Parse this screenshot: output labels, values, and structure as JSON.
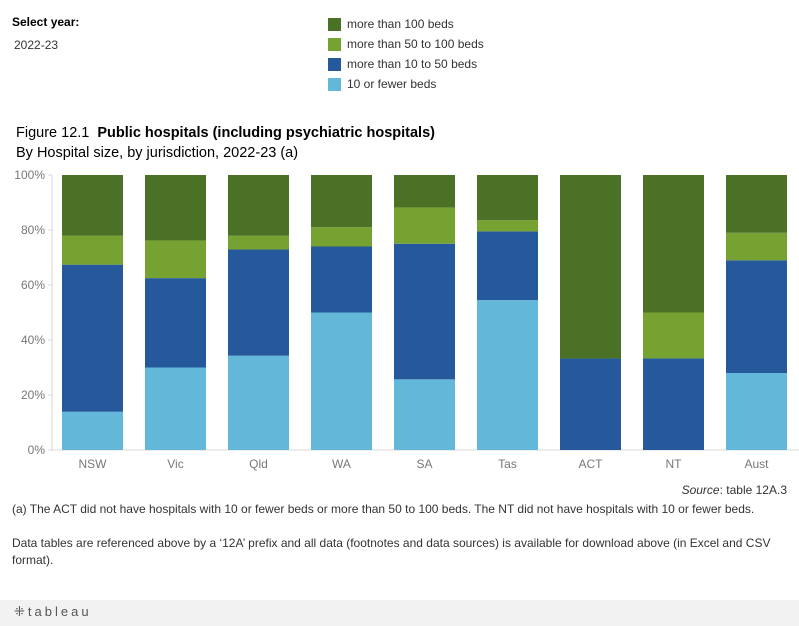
{
  "filter": {
    "label": "Select year:",
    "value": "2022-23"
  },
  "legend": [
    {
      "label": "more than 100 beds",
      "color": "#4a7125"
    },
    {
      "label": "more than 50 to 100 beds",
      "color": "#76a232"
    },
    {
      "label": "more than 10 to 50 beds",
      "color": "#26589c"
    },
    {
      "label": "10 or fewer beds",
      "color": "#63b8da"
    }
  ],
  "titles": {
    "figure": "Figure 12.1",
    "title": "Public hospitals (including psychiatric hospitals)",
    "subtitle": "By Hospital size, by jurisdiction, 2022-23 (a)"
  },
  "chart_data": {
    "type": "bar",
    "stacked": true,
    "categories": [
      "NSW",
      "Vic",
      "Qld",
      "WA",
      "SA",
      "Tas",
      "ACT",
      "NT",
      "Aust"
    ],
    "series": [
      {
        "name": "10 or fewer beds",
        "color": "#63b8da",
        "values": [
          13.9,
          30.0,
          34.3,
          50.0,
          25.7,
          54.5,
          0,
          0,
          28.0
        ]
      },
      {
        "name": "more than 10 to 50 beds",
        "color": "#26589c",
        "values": [
          53.5,
          32.5,
          38.6,
          24.0,
          49.3,
          25.0,
          33.3,
          33.3,
          41.0
        ]
      },
      {
        "name": "more than 50 to 100 beds",
        "color": "#76a232",
        "values": [
          10.5,
          13.7,
          5.0,
          7.0,
          13.2,
          4.1,
          0,
          16.7,
          10.0
        ]
      },
      {
        "name": "more than 100 beds",
        "color": "#4a7125",
        "values": [
          22.1,
          23.8,
          22.1,
          19.0,
          11.8,
          16.4,
          66.7,
          50.0,
          21.0
        ]
      }
    ],
    "y_ticks": [
      "0%",
      "20%",
      "40%",
      "60%",
      "80%",
      "100%"
    ],
    "ylim": [
      0,
      100
    ],
    "grid": false
  },
  "source": {
    "label": "Source",
    "text": ": table 12A.3"
  },
  "footnotes": [
    "(a) The ACT did not have hospitals with 10 or fewer beds or more than 50 to 100 beds. The NT did not have hospitals with 10 or fewer beds.",
    "Data tables are referenced above by a ‘12A’ prefix and all data (footnotes and data sources) is available for download above (in Excel and CSV format)."
  ],
  "footer": {
    "logo": "tableau"
  }
}
